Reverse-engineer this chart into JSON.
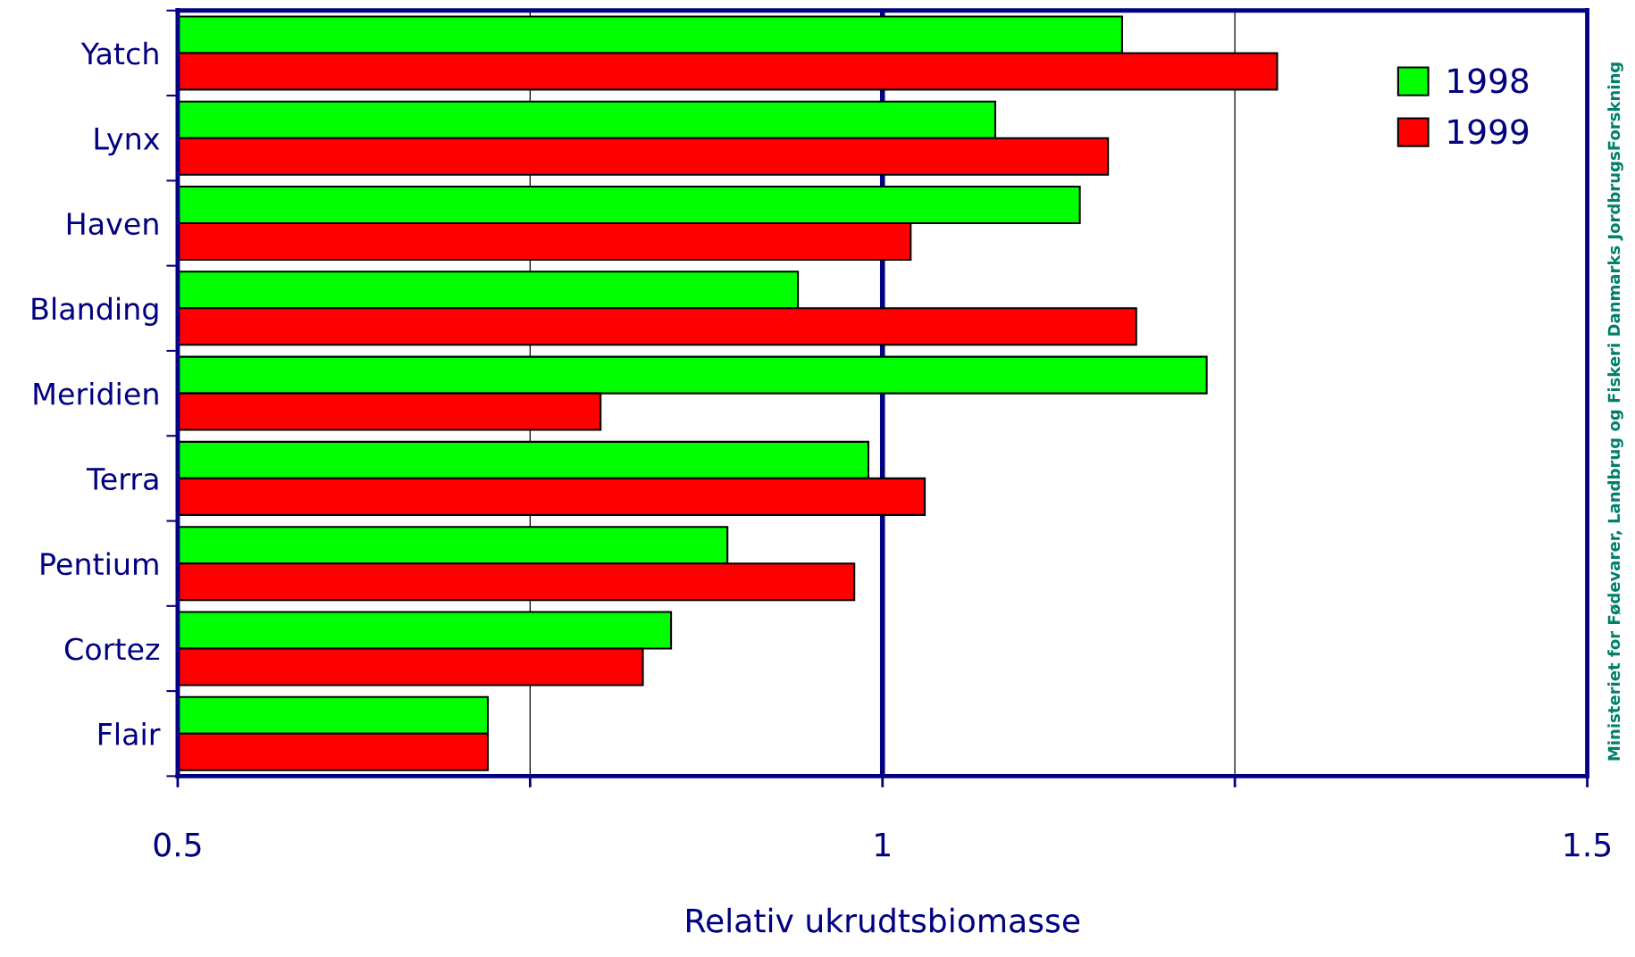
{
  "chart_data": {
    "type": "bar",
    "orientation": "horizontal",
    "categories": [
      "Yatch",
      "Lynx",
      "Haven",
      "Blanding",
      "Meridien",
      "Terra",
      "Pentium",
      "Cortez",
      "Flair"
    ],
    "series": [
      {
        "name": "1998",
        "color": "#00ff00",
        "values": [
          1.17,
          1.08,
          1.14,
          0.94,
          1.23,
          0.99,
          0.89,
          0.85,
          0.72
        ]
      },
      {
        "name": "1999",
        "color": "#ff0000",
        "values": [
          1.28,
          1.16,
          1.02,
          1.18,
          0.8,
          1.03,
          0.98,
          0.83,
          0.72
        ]
      }
    ],
    "xlabel": "Relativ ukrudtsbiomasse",
    "xlim": [
      0.5,
      1.5
    ],
    "xticks": [
      0.5,
      {
        "value": 0.75,
        "label": null
      },
      1,
      {
        "value": 1.25,
        "label": null
      },
      1.5
    ],
    "grid": "x",
    "legend": "top right",
    "ref_lines": [
      {
        "axis": "x",
        "value": 1,
        "color": "#000080"
      }
    ],
    "annotations": [
      "Ministeriet for Fødevarer, Landbrug og Fiskeri Danmarks JordbrugsForskning"
    ]
  }
}
